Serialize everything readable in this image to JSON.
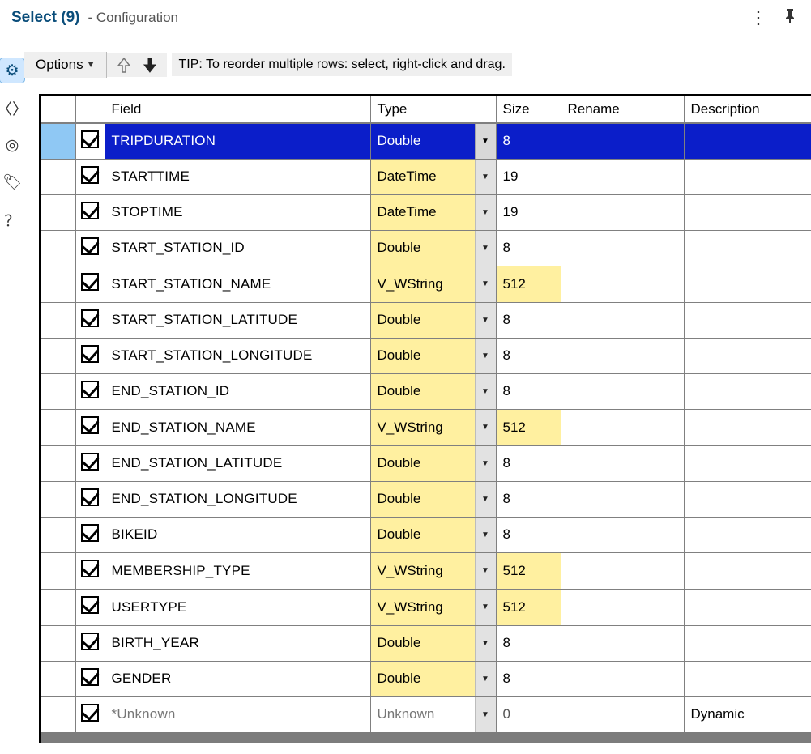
{
  "titlebar": {
    "tool_name": "Select (9)",
    "subtitle": "- Configuration"
  },
  "side_icons": [
    {
      "name": "gear-icon",
      "glyph": "⚙",
      "active": true
    },
    {
      "name": "code-icon",
      "glyph": "〈〉",
      "active": false
    },
    {
      "name": "target-icon",
      "glyph": "◎",
      "active": false
    },
    {
      "name": "tag-icon",
      "glyph": "🏷",
      "active": false
    },
    {
      "name": "help-icon",
      "glyph": "？",
      "active": false
    }
  ],
  "toolbar": {
    "options_label": "Options",
    "tip_text": "TIP: To reorder multiple rows: select, right-click and drag."
  },
  "columns": {
    "field": "Field",
    "type": "Type",
    "size": "Size",
    "rename": "Rename",
    "description": "Description"
  },
  "rows": [
    {
      "checked": true,
      "selected": true,
      "field": "TRIPDURATION",
      "type": "Double",
      "type_changed": false,
      "size": "8",
      "size_changed": false,
      "rename": "",
      "description": ""
    },
    {
      "checked": true,
      "selected": false,
      "field": "STARTTIME",
      "type": "DateTime",
      "type_changed": true,
      "size": "19",
      "size_changed": false,
      "rename": "",
      "description": ""
    },
    {
      "checked": true,
      "selected": false,
      "field": "STOPTIME",
      "type": "DateTime",
      "type_changed": true,
      "size": "19",
      "size_changed": false,
      "rename": "",
      "description": ""
    },
    {
      "checked": true,
      "selected": false,
      "field": "START_STATION_ID",
      "type": "Double",
      "type_changed": true,
      "size": "8",
      "size_changed": false,
      "rename": "",
      "description": ""
    },
    {
      "checked": true,
      "selected": false,
      "field": "START_STATION_NAME",
      "type": "V_WString",
      "type_changed": true,
      "size": "512",
      "size_changed": true,
      "rename": "",
      "description": ""
    },
    {
      "checked": true,
      "selected": false,
      "field": "START_STATION_LATITUDE",
      "type": "Double",
      "type_changed": true,
      "size": "8",
      "size_changed": false,
      "rename": "",
      "description": ""
    },
    {
      "checked": true,
      "selected": false,
      "field": "START_STATION_LONGITUDE",
      "type": "Double",
      "type_changed": true,
      "size": "8",
      "size_changed": false,
      "rename": "",
      "description": ""
    },
    {
      "checked": true,
      "selected": false,
      "field": "END_STATION_ID",
      "type": "Double",
      "type_changed": true,
      "size": "8",
      "size_changed": false,
      "rename": "",
      "description": ""
    },
    {
      "checked": true,
      "selected": false,
      "field": "END_STATION_NAME",
      "type": "V_WString",
      "type_changed": true,
      "size": "512",
      "size_changed": true,
      "rename": "",
      "description": ""
    },
    {
      "checked": true,
      "selected": false,
      "field": "END_STATION_LATITUDE",
      "type": "Double",
      "type_changed": true,
      "size": "8",
      "size_changed": false,
      "rename": "",
      "description": ""
    },
    {
      "checked": true,
      "selected": false,
      "field": "END_STATION_LONGITUDE",
      "type": "Double",
      "type_changed": true,
      "size": "8",
      "size_changed": false,
      "rename": "",
      "description": ""
    },
    {
      "checked": true,
      "selected": false,
      "field": "BIKEID",
      "type": "Double",
      "type_changed": true,
      "size": "8",
      "size_changed": false,
      "rename": "",
      "description": ""
    },
    {
      "checked": true,
      "selected": false,
      "field": "MEMBERSHIP_TYPE",
      "type": "V_WString",
      "type_changed": true,
      "size": "512",
      "size_changed": true,
      "rename": "",
      "description": ""
    },
    {
      "checked": true,
      "selected": false,
      "field": "USERTYPE",
      "type": "V_WString",
      "type_changed": true,
      "size": "512",
      "size_changed": true,
      "rename": "",
      "description": ""
    },
    {
      "checked": true,
      "selected": false,
      "field": "BIRTH_YEAR",
      "type": "Double",
      "type_changed": true,
      "size": "8",
      "size_changed": false,
      "rename": "",
      "description": ""
    },
    {
      "checked": true,
      "selected": false,
      "field": "GENDER",
      "type": "Double",
      "type_changed": true,
      "size": "8",
      "size_changed": false,
      "rename": "",
      "description": ""
    },
    {
      "checked": true,
      "selected": false,
      "field": "*Unknown",
      "type": "Unknown",
      "type_changed": false,
      "size": "0",
      "size_changed": false,
      "rename": "",
      "description": "Dynamic",
      "unknown": true
    }
  ],
  "colors": {
    "title_blue": "#0a4d7a",
    "selected_row_bg": "#0b1ec9",
    "selected_rowhead_bg": "#8fc8f4",
    "active_side_bg": "#cfe7ff",
    "highlight_yellow": "#fff0a0",
    "grid_border": "#808080",
    "frame_border": "#000000",
    "dropdown_btn_bg": "#e2e2e2",
    "scrollbar_bg": "#7c7c7c"
  }
}
